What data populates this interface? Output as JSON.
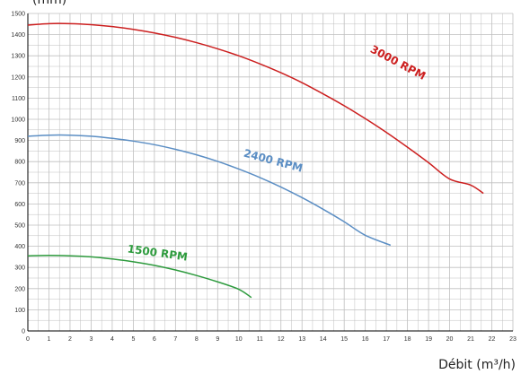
{
  "chart_data": {
    "type": "line",
    "title": "",
    "top_label_fragment": "(mm)",
    "xlabel": "Débit (m³/h)",
    "ylabel": "",
    "xlim": [
      0,
      23
    ],
    "ylim": [
      0,
      1500
    ],
    "grid": true,
    "x_ticks": [
      0,
      1,
      2,
      3,
      4,
      5,
      6,
      7,
      8,
      9,
      10,
      11,
      12,
      13,
      14,
      15,
      16,
      17,
      18,
      19,
      20,
      21,
      22,
      23
    ],
    "y_ticks": [
      0,
      100,
      200,
      300,
      400,
      500,
      600,
      700,
      800,
      900,
      1000,
      1100,
      1200,
      1300,
      1400,
      1500
    ],
    "colors": {
      "grid": "#bfbfbf",
      "axis": "#000000"
    },
    "series": [
      {
        "name": "3000 RPM",
        "color": "#cc1f1f",
        "label_at": {
          "x": 16.2,
          "y": 1320,
          "angle": 28
        },
        "points": [
          [
            0,
            1445
          ],
          [
            1,
            1452
          ],
          [
            2,
            1452
          ],
          [
            3,
            1447
          ],
          [
            4,
            1438
          ],
          [
            5,
            1425
          ],
          [
            6,
            1408
          ],
          [
            7,
            1387
          ],
          [
            8,
            1362
          ],
          [
            9,
            1333
          ],
          [
            10,
            1300
          ],
          [
            11,
            1262
          ],
          [
            12,
            1220
          ],
          [
            13,
            1173
          ],
          [
            14,
            1120
          ],
          [
            15,
            1064
          ],
          [
            16,
            1003
          ],
          [
            17,
            938
          ],
          [
            18,
            868
          ],
          [
            19,
            795
          ],
          [
            20,
            718
          ],
          [
            21,
            689
          ],
          [
            21.6,
            650
          ]
        ]
      },
      {
        "name": "2400 RPM",
        "color": "#5b8ec4",
        "label_at": {
          "x": 10.2,
          "y": 825,
          "angle": 15
        },
        "points": [
          [
            0,
            920
          ],
          [
            1,
            925
          ],
          [
            2,
            925
          ],
          [
            3,
            920
          ],
          [
            4,
            910
          ],
          [
            5,
            897
          ],
          [
            6,
            880
          ],
          [
            7,
            858
          ],
          [
            8,
            832
          ],
          [
            9,
            801
          ],
          [
            10,
            765
          ],
          [
            11,
            725
          ],
          [
            12,
            680
          ],
          [
            13,
            630
          ],
          [
            14,
            575
          ],
          [
            15,
            516
          ],
          [
            16,
            452
          ],
          [
            17.2,
            405
          ]
        ]
      },
      {
        "name": "1500 RPM",
        "color": "#2e9b3e",
        "label_at": {
          "x": 4.7,
          "y": 372,
          "angle": 8
        },
        "points": [
          [
            0,
            355
          ],
          [
            1,
            357
          ],
          [
            2,
            355
          ],
          [
            3,
            350
          ],
          [
            4,
            340
          ],
          [
            5,
            327
          ],
          [
            6,
            310
          ],
          [
            7,
            288
          ],
          [
            8,
            262
          ],
          [
            9,
            232
          ],
          [
            10,
            197
          ],
          [
            10.6,
            158
          ]
        ]
      }
    ]
  }
}
